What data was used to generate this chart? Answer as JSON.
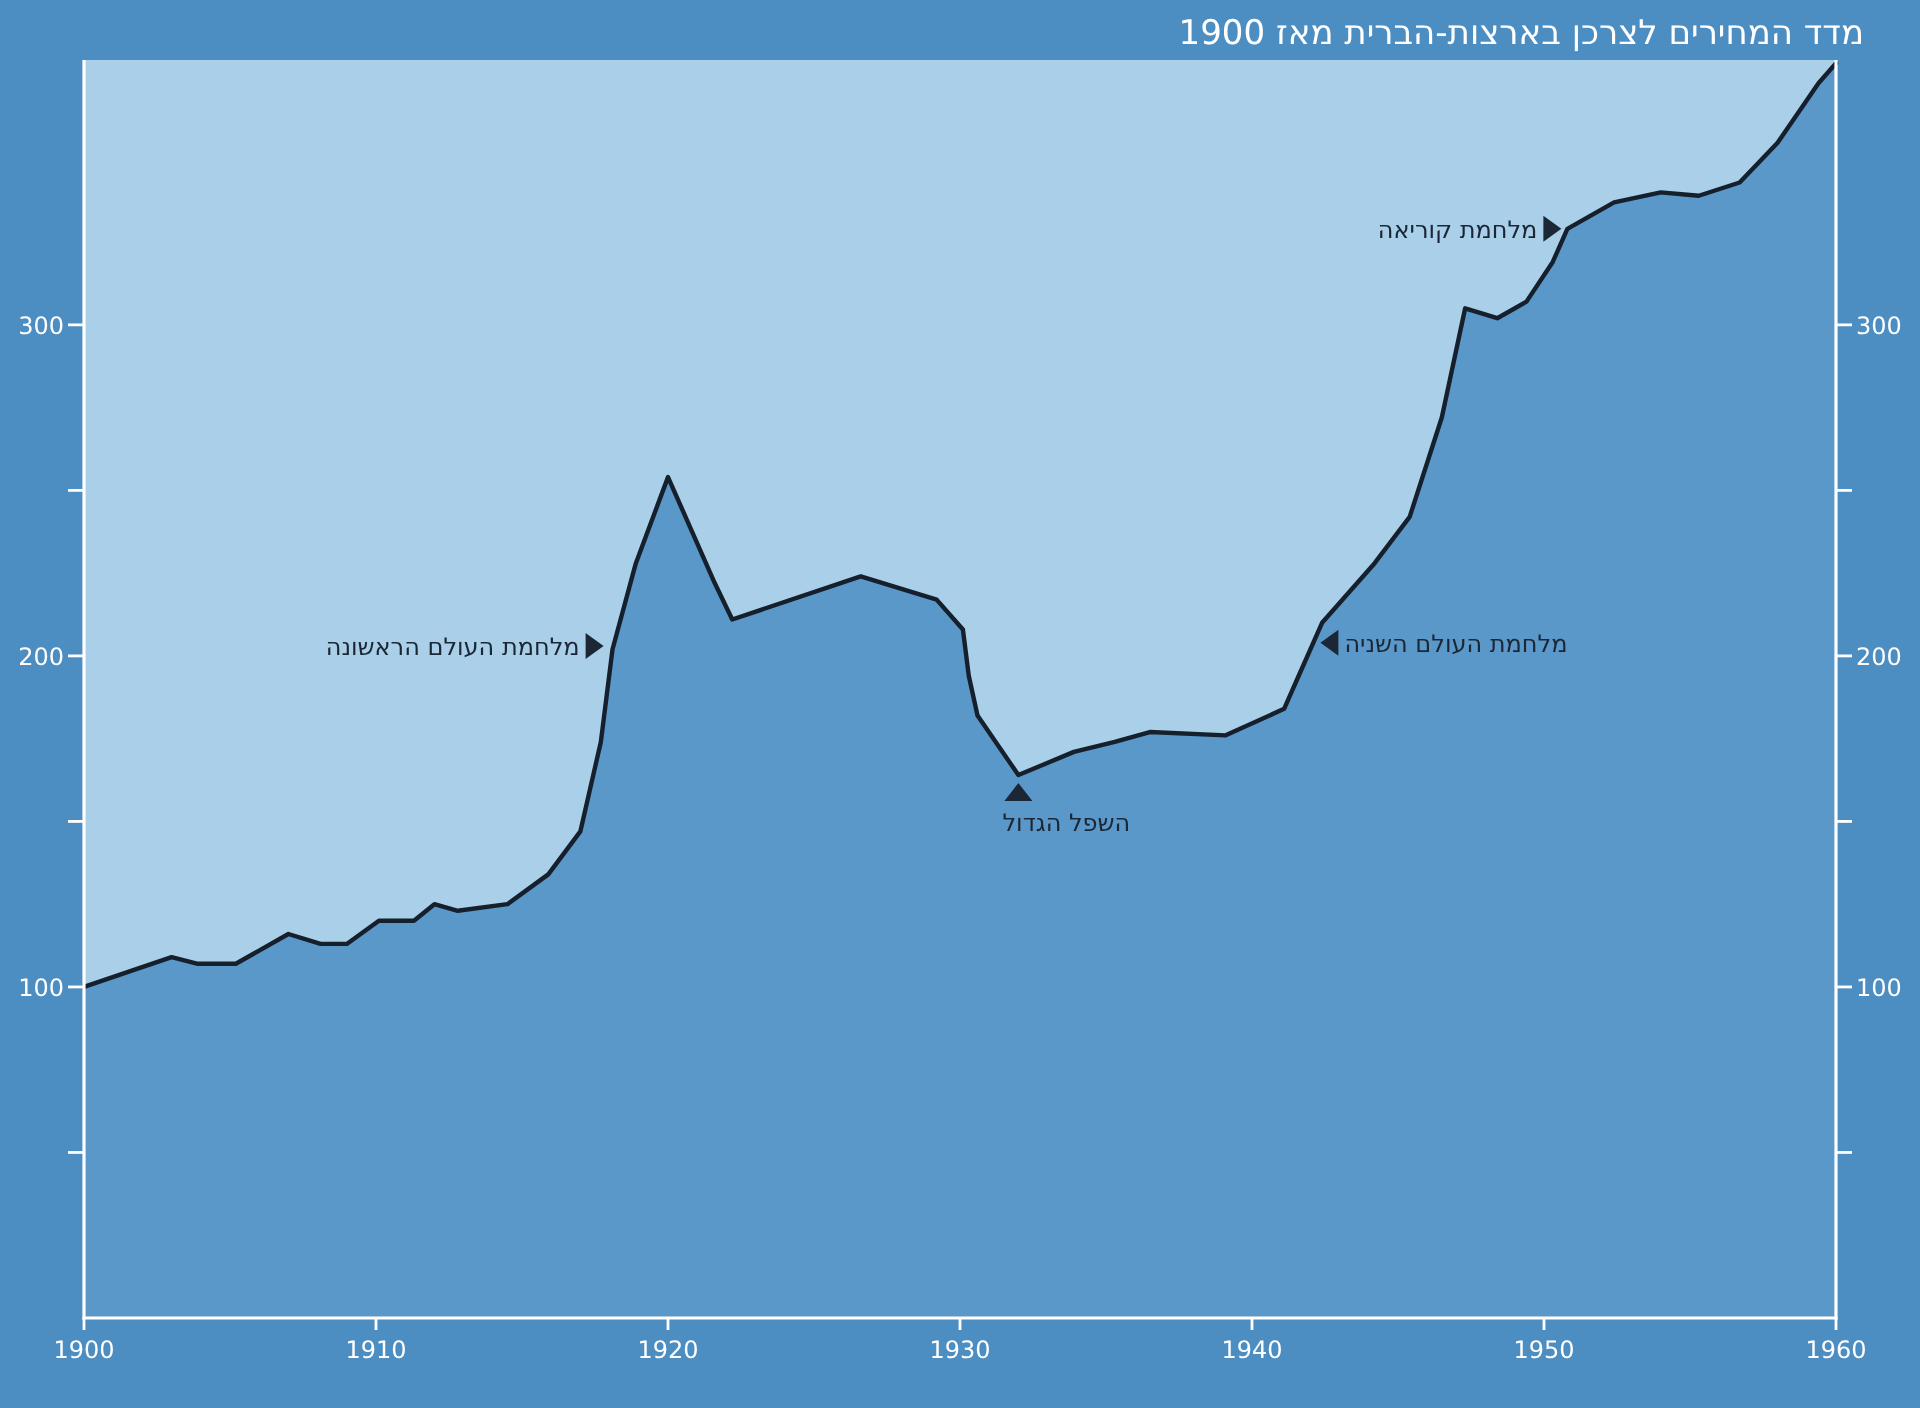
{
  "chart_data": {
    "type": "area",
    "title": "מדד המחירים לצרכן בארצות-הברית מאז 1900",
    "x": [
      1900,
      1903,
      1903.9,
      1905.2,
      1907,
      1908.1,
      1909,
      1910.1,
      1911.3,
      1912,
      1912.8,
      1914.5,
      1915.9,
      1917,
      1917.7,
      1918.1,
      1918.9,
      1920,
      1921.6,
      1922.2,
      1926.6,
      1929.2,
      1930.1,
      1930.3,
      1930.6,
      1932,
      1933.9,
      1935.3,
      1936.5,
      1939.1,
      1941.1,
      1941.6,
      1942.4,
      1944.2,
      1945.4,
      1946.5,
      1947.3,
      1948.4,
      1949.4,
      1950.3,
      1950.8,
      1952.4,
      1954,
      1955.3,
      1956.7,
      1958,
      1959.4,
      1960
    ],
    "series": [
      {
        "color": "#5a98ca",
        "values": [
          100,
          109,
          107,
          107,
          116,
          113,
          113,
          120,
          120,
          125,
          123,
          125,
          134,
          147,
          174,
          202,
          228,
          254,
          222,
          211,
          224,
          217,
          208,
          194,
          182,
          164,
          171,
          174,
          177,
          176,
          184,
          194,
          210,
          228,
          242,
          272,
          305,
          302,
          307,
          319,
          329,
          337,
          340,
          339,
          343,
          355,
          373,
          379
        ]
      }
    ],
    "xlim": [
      1900,
      1960
    ],
    "xticks": [
      1900,
      1910,
      1920,
      1930,
      1940,
      1950,
      1960
    ],
    "ylim": [
      0,
      380
    ],
    "yticks": [
      {
        "value": 50,
        "label": null
      },
      100,
      {
        "value": 150,
        "label": null
      },
      200,
      {
        "value": 250,
        "label": null
      },
      300
    ],
    "y2lim": [
      0,
      380
    ],
    "y2ticks": [
      {
        "value": 50,
        "label": null
      },
      100,
      {
        "value": 150,
        "label": null
      },
      200,
      {
        "value": 250,
        "label": null
      },
      300
    ],
    "bands": [
      {
        "axis": "x",
        "from": 1900,
        "to": 1960,
        "color": "#a9cfe9"
      }
    ],
    "annotations": [
      {
        "text": "מלחמת העולם הראשונה",
        "x": 1918,
        "y": 203
      },
      {
        "text": "השפל הגדול",
        "x": 1932,
        "y": 164
      },
      {
        "text": "מלחמת העולם השניה",
        "x": 1942,
        "y": 204
      },
      {
        "text": "מלחמת קוריאה",
        "x": 1950.8,
        "y": 329
      }
    ]
  }
}
